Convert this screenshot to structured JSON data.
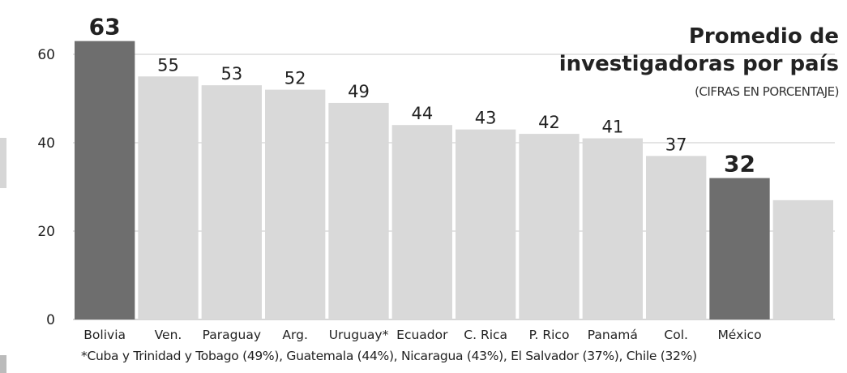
{
  "chart_data": {
    "type": "bar",
    "title_line1": "Promedio de",
    "title_line2": "investigadoras por país",
    "subtitle": "(CIFRAS EN PORCENTAJE)",
    "categories": [
      "Bolivia",
      "Ven.",
      "Paraguay",
      "Arg.",
      "Uruguay*",
      "Ecuador",
      "C. Rica",
      "P. Rico",
      "Panamá",
      "Col.",
      "México",
      ""
    ],
    "values": [
      63,
      55,
      53,
      52,
      49,
      44,
      43,
      42,
      41,
      37,
      32,
      27
    ],
    "value_labels": [
      "63",
      "55",
      "53",
      "52",
      "49",
      "44",
      "43",
      "42",
      "41",
      "37",
      "32",
      ""
    ],
    "highlighted": [
      "Bolivia",
      "México"
    ],
    "ylim": [
      0,
      68
    ],
    "yticks": [
      0,
      20,
      40,
      60
    ],
    "grid": true,
    "note": "*Cuba y Trinidad y Tobago (49%), Guatemala (44%), Nicaragua (43%), El Salvador (37%), Chile (32%)",
    "colors": {
      "bar": "#d9d9d9",
      "highlight": "#6e6e6e",
      "grid": "#c8c8c8",
      "text": "#222222"
    }
  }
}
